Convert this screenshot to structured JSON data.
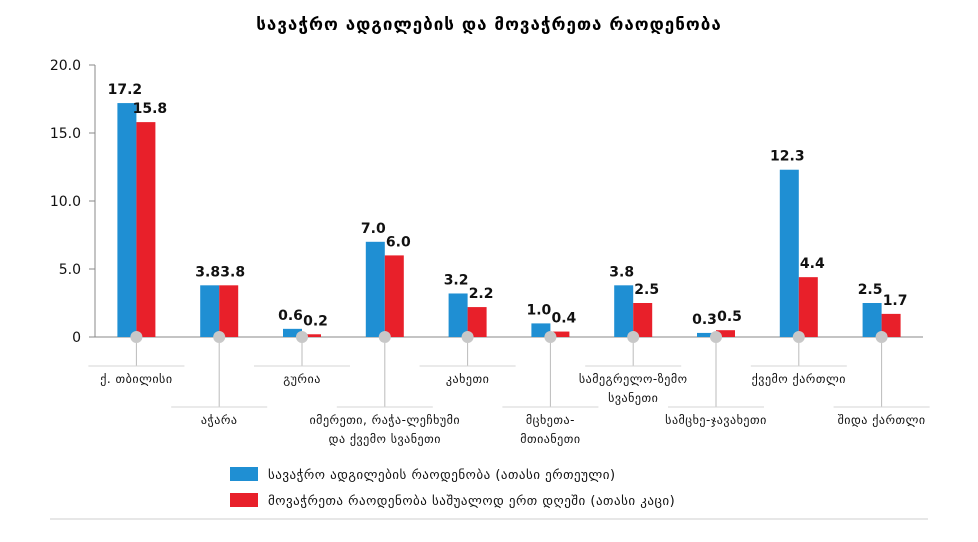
{
  "chart_data": {
    "type": "bar",
    "title": "სავაჭრო ადგილების და მოვაჭრეთა რაოდენობა",
    "categories": [
      "ქ. თბილისი",
      "აჭარა",
      "გურია",
      "იმერეთი, რაჭა-ლეჩხუმი და ქვემო სვანეთი",
      "კახეთი",
      "მცხეთა-მთიანეთი",
      "სამეგრელო-ზემო სვანეთი",
      "სამცხე-ჯავახეთი",
      "ქვემო ქართლი",
      "შიდა ქართლი"
    ],
    "category_lines": [
      [
        "ქ. თბილისი"
      ],
      [
        "აჭარა"
      ],
      [
        "გურია"
      ],
      [
        "იმერეთი, რაჭა-ლეჩხუმი",
        "და ქვემო სვანეთი"
      ],
      [
        "კახეთი"
      ],
      [
        "მცხეთა-",
        "მთიანეთი"
      ],
      [
        "სამეგრელო-ზემო",
        "სვანეთი"
      ],
      [
        "სამცხე-ჯავახეთი"
      ],
      [
        "ქვემო ქართლი"
      ],
      [
        "შიდა ქართლი"
      ]
    ],
    "series": [
      {
        "name": "სავაჭრო ადგილების რაოდენობა (ათასი ერთეული)",
        "color": "#1f8fd3",
        "values": [
          17.2,
          3.8,
          0.6,
          7.0,
          3.2,
          1.0,
          3.8,
          0.3,
          12.3,
          2.5
        ]
      },
      {
        "name": "მოვაჭრეთა რაოდენობა საშუალოდ ერთ დღეში (ათასი კაცი)",
        "color": "#e8202a",
        "values": [
          15.8,
          3.8,
          0.2,
          6.0,
          2.2,
          0.4,
          2.5,
          0.5,
          4.4,
          1.7
        ]
      }
    ],
    "ylim": [
      0,
      20
    ],
    "yticks": [
      "0",
      "5.0",
      "10.0",
      "15.0",
      "20.0"
    ],
    "legend_position": "bottom",
    "grid": false
  }
}
